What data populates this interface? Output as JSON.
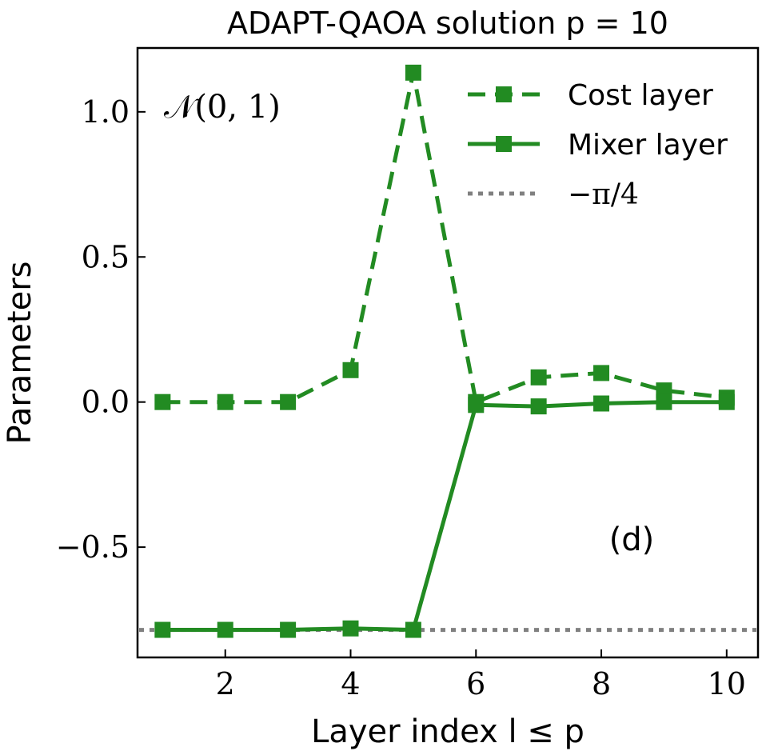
{
  "chart_data": {
    "type": "line",
    "title": "ADAPT-QAOA solution p = 10",
    "xlabel": "Layer index l ≤ p",
    "ylabel": "Parameters",
    "xlim": [
      0.6,
      10.5
    ],
    "ylim": [
      -0.88,
      1.22
    ],
    "xticks": [
      2,
      4,
      6,
      8,
      10
    ],
    "yticks": [
      1.0,
      0.5,
      0.0,
      -0.5
    ],
    "ytick_labels": [
      "1.0",
      "0.5",
      "0.0",
      "−0.5"
    ],
    "inset_label": "𝒩(0, 1)",
    "panel_label": "(d)",
    "legend_position": "top-right",
    "x": [
      1,
      2,
      3,
      4,
      5,
      6,
      7,
      8,
      9,
      10
    ],
    "series": [
      {
        "name": "Cost layer",
        "style": "dashed",
        "marker": "square",
        "color": "#228b22",
        "values": [
          0.0,
          0.0,
          0.0,
          0.11,
          1.135,
          0.0,
          0.085,
          0.1,
          0.04,
          0.015
        ]
      },
      {
        "name": "Mixer layer",
        "style": "solid",
        "marker": "square",
        "color": "#228b22",
        "values": [
          -0.785,
          -0.785,
          -0.785,
          -0.78,
          -0.785,
          -0.01,
          -0.015,
          -0.005,
          0.0,
          0.0
        ]
      }
    ],
    "reference_lines": [
      {
        "name": "−π/4",
        "y": -0.7854,
        "style": "dotted",
        "color": "#808080"
      }
    ]
  }
}
